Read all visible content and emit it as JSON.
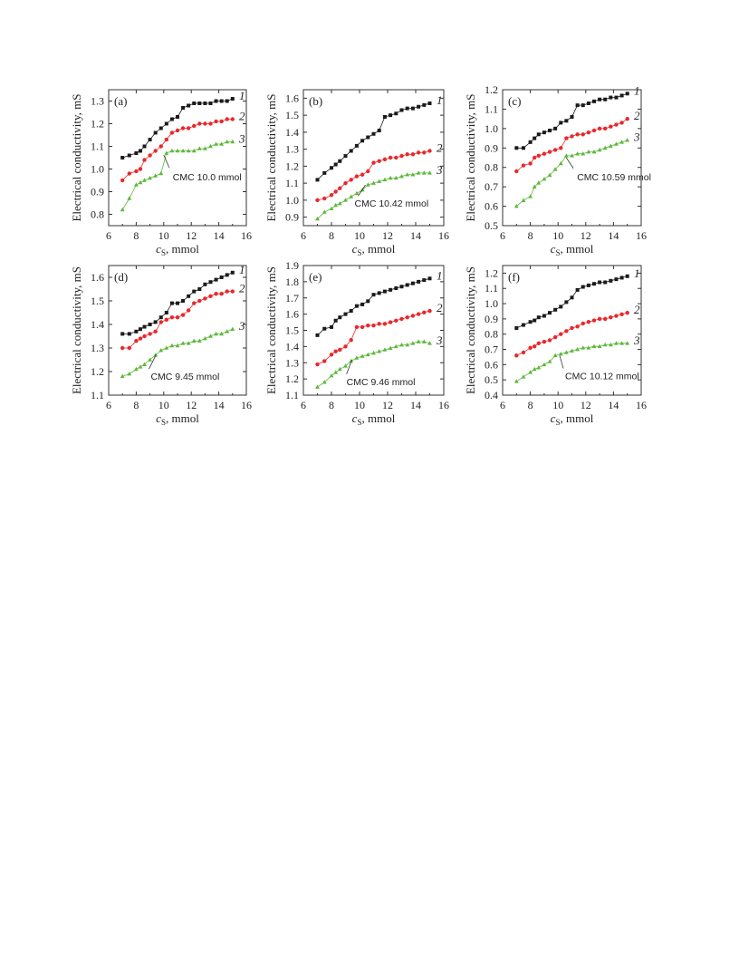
{
  "colors": {
    "series1": "#1a1a1a",
    "series2": "#e8282b",
    "series3": "#5cb83a"
  },
  "chart_data": [
    {
      "type": "line",
      "panel_label": "(a)",
      "xlabel_main": "c",
      "xlabel_sub": "S",
      "xlabel_rest": ", mmol",
      "ylabel": "Electrical conductivity, mS",
      "xlim": [
        6,
        16
      ],
      "ylim": [
        0.75,
        1.35
      ],
      "xticks": [
        6,
        8,
        10,
        12,
        14,
        16
      ],
      "yticks": [
        0.8,
        0.9,
        1.0,
        1.1,
        1.2,
        1.3
      ],
      "yprecision": 1,
      "annotation": "CMC 10.0 mmol",
      "cmc_point": [
        10.0,
        1.07
      ],
      "series": [
        {
          "name": "1",
          "marker": "square",
          "x": [
            7.0,
            7.5,
            8.0,
            8.3,
            8.6,
            9.0,
            9.4,
            9.8,
            10.2,
            10.6,
            11.0,
            11.4,
            11.8,
            12.2,
            12.6,
            13.0,
            13.4,
            13.8,
            14.2,
            14.6,
            15.0
          ],
          "y": [
            1.05,
            1.06,
            1.07,
            1.08,
            1.1,
            1.13,
            1.16,
            1.18,
            1.2,
            1.22,
            1.23,
            1.27,
            1.28,
            1.29,
            1.29,
            1.29,
            1.29,
            1.3,
            1.3,
            1.3,
            1.31
          ]
        },
        {
          "name": "2",
          "marker": "circle",
          "x": [
            7.0,
            7.5,
            8.0,
            8.3,
            8.6,
            9.0,
            9.4,
            9.8,
            10.2,
            10.6,
            11.0,
            11.4,
            11.8,
            12.2,
            12.6,
            13.0,
            13.4,
            13.8,
            14.2,
            14.6,
            15.0
          ],
          "y": [
            0.95,
            0.98,
            0.99,
            1.0,
            1.04,
            1.06,
            1.08,
            1.1,
            1.13,
            1.16,
            1.17,
            1.18,
            1.18,
            1.19,
            1.2,
            1.2,
            1.2,
            1.21,
            1.21,
            1.22,
            1.22
          ]
        },
        {
          "name": "3",
          "marker": "triangle",
          "x": [
            7.0,
            7.5,
            8.0,
            8.3,
            8.6,
            9.0,
            9.4,
            9.8,
            10.2,
            10.6,
            11.0,
            11.4,
            11.8,
            12.2,
            12.6,
            13.0,
            13.4,
            13.8,
            14.2,
            14.6,
            15.0
          ],
          "y": [
            0.82,
            0.87,
            0.93,
            0.94,
            0.95,
            0.96,
            0.97,
            0.98,
            1.07,
            1.08,
            1.08,
            1.08,
            1.08,
            1.08,
            1.09,
            1.09,
            1.1,
            1.11,
            1.11,
            1.12,
            1.12
          ]
        }
      ]
    },
    {
      "type": "line",
      "panel_label": "(b)",
      "xlabel_main": "c",
      "xlabel_sub": "S",
      "xlabel_rest": ", mmol",
      "ylabel": "Electrical conductivity, mS",
      "xlim": [
        6,
        16
      ],
      "ylim": [
        0.85,
        1.65
      ],
      "xticks": [
        6,
        8,
        10,
        12,
        14,
        16
      ],
      "yticks": [
        0.9,
        1.0,
        1.1,
        1.2,
        1.3,
        1.4,
        1.5,
        1.6
      ],
      "yprecision": 1,
      "annotation": "CMC 10.42 mmol",
      "cmc_point": [
        10.42,
        1.1
      ],
      "series": [
        {
          "name": "1",
          "marker": "square",
          "x": [
            7.0,
            7.5,
            8.0,
            8.3,
            8.6,
            9.0,
            9.4,
            9.8,
            10.2,
            10.6,
            11.0,
            11.4,
            11.8,
            12.2,
            12.6,
            13.0,
            13.4,
            13.8,
            14.2,
            14.6,
            15.0
          ],
          "y": [
            1.12,
            1.16,
            1.19,
            1.21,
            1.23,
            1.26,
            1.29,
            1.32,
            1.35,
            1.37,
            1.39,
            1.41,
            1.49,
            1.5,
            1.51,
            1.53,
            1.54,
            1.54,
            1.55,
            1.56,
            1.57
          ]
        },
        {
          "name": "2",
          "marker": "circle",
          "x": [
            7.0,
            7.5,
            8.0,
            8.3,
            8.6,
            9.0,
            9.4,
            9.8,
            10.2,
            10.6,
            11.0,
            11.4,
            11.8,
            12.2,
            12.6,
            13.0,
            13.4,
            13.8,
            14.2,
            14.6,
            15.0
          ],
          "y": [
            1.0,
            1.01,
            1.03,
            1.05,
            1.07,
            1.1,
            1.12,
            1.14,
            1.15,
            1.17,
            1.22,
            1.23,
            1.24,
            1.25,
            1.25,
            1.26,
            1.27,
            1.27,
            1.28,
            1.28,
            1.29
          ]
        },
        {
          "name": "3",
          "marker": "triangle",
          "x": [
            7.0,
            7.5,
            8.0,
            8.3,
            8.6,
            9.0,
            9.4,
            9.8,
            10.2,
            10.6,
            11.0,
            11.4,
            11.8,
            12.2,
            12.6,
            13.0,
            13.4,
            13.8,
            14.2,
            14.6,
            15.0
          ],
          "y": [
            0.89,
            0.93,
            0.95,
            0.97,
            0.98,
            1.0,
            1.02,
            1.04,
            1.06,
            1.09,
            1.1,
            1.11,
            1.12,
            1.13,
            1.13,
            1.14,
            1.15,
            1.15,
            1.16,
            1.16,
            1.16
          ]
        }
      ]
    },
    {
      "type": "line",
      "panel_label": "(c)",
      "xlabel_main": "c",
      "xlabel_sub": "S",
      "xlabel_rest": ", mmol",
      "ylabel": "Electrical conductivity, mS",
      "xlim": [
        6,
        16
      ],
      "ylim": [
        0.5,
        1.2
      ],
      "xticks": [
        6,
        8,
        10,
        12,
        14,
        16
      ],
      "yticks": [
        0.5,
        0.6,
        0.7,
        0.8,
        0.9,
        1.0,
        1.1,
        1.2
      ],
      "yprecision": 1,
      "annotation": "CMC 10.59 mmol",
      "cmc_point": [
        10.59,
        0.86
      ],
      "series": [
        {
          "name": "1",
          "marker": "square",
          "x": [
            7.0,
            7.5,
            8.0,
            8.3,
            8.6,
            9.0,
            9.4,
            9.8,
            10.2,
            10.6,
            11.0,
            11.4,
            11.8,
            12.2,
            12.6,
            13.0,
            13.4,
            13.8,
            14.2,
            14.6,
            15.0
          ],
          "y": [
            0.9,
            0.9,
            0.93,
            0.95,
            0.97,
            0.98,
            0.99,
            1.0,
            1.03,
            1.04,
            1.06,
            1.12,
            1.12,
            1.13,
            1.14,
            1.15,
            1.15,
            1.16,
            1.16,
            1.17,
            1.18
          ]
        },
        {
          "name": "2",
          "marker": "circle",
          "x": [
            7.0,
            7.5,
            8.0,
            8.3,
            8.6,
            9.0,
            9.4,
            9.8,
            10.2,
            10.6,
            11.0,
            11.4,
            11.8,
            12.2,
            12.6,
            13.0,
            13.4,
            13.8,
            14.2,
            14.6,
            15.0
          ],
          "y": [
            0.78,
            0.81,
            0.82,
            0.85,
            0.86,
            0.87,
            0.88,
            0.89,
            0.9,
            0.95,
            0.96,
            0.97,
            0.97,
            0.98,
            0.99,
            1.0,
            1.0,
            1.01,
            1.02,
            1.03,
            1.05
          ]
        },
        {
          "name": "3",
          "marker": "triangle",
          "x": [
            7.0,
            7.5,
            8.0,
            8.3,
            8.6,
            9.0,
            9.4,
            9.8,
            10.2,
            10.6,
            11.0,
            11.4,
            11.8,
            12.2,
            12.6,
            13.0,
            13.4,
            13.8,
            14.2,
            14.6,
            15.0
          ],
          "y": [
            0.6,
            0.63,
            0.65,
            0.7,
            0.72,
            0.74,
            0.76,
            0.79,
            0.82,
            0.86,
            0.86,
            0.87,
            0.87,
            0.88,
            0.88,
            0.89,
            0.9,
            0.91,
            0.92,
            0.93,
            0.94
          ]
        }
      ]
    },
    {
      "type": "line",
      "panel_label": "(d)",
      "xlabel_main": "c",
      "xlabel_sub": "S",
      "xlabel_rest": ", mmol",
      "ylabel": "Electrical conductivity, mS",
      "xlim": [
        6,
        16
      ],
      "ylim": [
        1.1,
        1.65
      ],
      "xticks": [
        6,
        8,
        10,
        12,
        14,
        16
      ],
      "yticks": [
        1.1,
        1.2,
        1.3,
        1.4,
        1.5,
        1.6
      ],
      "yprecision": 1,
      "annotation": "CMC 9.45 mmol",
      "cmc_point": [
        9.45,
        1.28
      ],
      "series": [
        {
          "name": "1",
          "marker": "square",
          "x": [
            7.0,
            7.5,
            8.0,
            8.3,
            8.6,
            9.0,
            9.4,
            9.8,
            10.2,
            10.6,
            11.0,
            11.4,
            11.8,
            12.2,
            12.6,
            13.0,
            13.4,
            13.8,
            14.2,
            14.6,
            15.0
          ],
          "y": [
            1.36,
            1.36,
            1.37,
            1.38,
            1.39,
            1.4,
            1.41,
            1.43,
            1.45,
            1.49,
            1.49,
            1.5,
            1.52,
            1.54,
            1.55,
            1.57,
            1.58,
            1.59,
            1.6,
            1.61,
            1.62
          ]
        },
        {
          "name": "2",
          "marker": "circle",
          "x": [
            7.0,
            7.5,
            8.0,
            8.3,
            8.6,
            9.0,
            9.4,
            9.8,
            10.2,
            10.6,
            11.0,
            11.4,
            11.8,
            12.2,
            12.6,
            13.0,
            13.4,
            13.8,
            14.2,
            14.6,
            15.0
          ],
          "y": [
            1.3,
            1.3,
            1.33,
            1.34,
            1.35,
            1.36,
            1.37,
            1.41,
            1.42,
            1.43,
            1.43,
            1.44,
            1.46,
            1.49,
            1.5,
            1.51,
            1.52,
            1.53,
            1.53,
            1.54,
            1.54
          ]
        },
        {
          "name": "3",
          "marker": "triangle",
          "x": [
            7.0,
            7.5,
            8.0,
            8.3,
            8.6,
            9.0,
            9.4,
            9.8,
            10.2,
            10.6,
            11.0,
            11.4,
            11.8,
            12.2,
            12.6,
            13.0,
            13.4,
            13.8,
            14.2,
            14.6,
            15.0
          ],
          "y": [
            1.18,
            1.19,
            1.21,
            1.22,
            1.23,
            1.25,
            1.27,
            1.29,
            1.3,
            1.31,
            1.31,
            1.32,
            1.32,
            1.33,
            1.33,
            1.34,
            1.35,
            1.36,
            1.36,
            1.37,
            1.38
          ]
        }
      ]
    },
    {
      "type": "line",
      "panel_label": "(e)",
      "xlabel_main": "c",
      "xlabel_sub": "S",
      "xlabel_rest": ", mmol",
      "ylabel": "Electrical conductivity, mS",
      "xlim": [
        6,
        16
      ],
      "ylim": [
        1.1,
        1.9
      ],
      "xticks": [
        6,
        8,
        10,
        12,
        14,
        16
      ],
      "yticks": [
        1.1,
        1.2,
        1.3,
        1.4,
        1.5,
        1.6,
        1.7,
        1.8,
        1.9
      ],
      "yprecision": 1,
      "annotation": "CMC 9.46 mmol",
      "cmc_point": [
        9.46,
        1.33
      ],
      "series": [
        {
          "name": "1",
          "marker": "square",
          "x": [
            7.0,
            7.5,
            8.0,
            8.3,
            8.6,
            9.0,
            9.4,
            9.8,
            10.2,
            10.6,
            11.0,
            11.4,
            11.8,
            12.2,
            12.6,
            13.0,
            13.4,
            13.8,
            14.2,
            14.6,
            15.0
          ],
          "y": [
            1.47,
            1.51,
            1.52,
            1.56,
            1.58,
            1.6,
            1.62,
            1.65,
            1.66,
            1.68,
            1.72,
            1.73,
            1.74,
            1.75,
            1.76,
            1.77,
            1.78,
            1.79,
            1.8,
            1.81,
            1.82
          ]
        },
        {
          "name": "2",
          "marker": "circle",
          "x": [
            7.0,
            7.5,
            8.0,
            8.3,
            8.6,
            9.0,
            9.4,
            9.8,
            10.2,
            10.6,
            11.0,
            11.4,
            11.8,
            12.2,
            12.6,
            13.0,
            13.4,
            13.8,
            14.2,
            14.6,
            15.0
          ],
          "y": [
            1.29,
            1.31,
            1.35,
            1.37,
            1.38,
            1.4,
            1.44,
            1.52,
            1.52,
            1.53,
            1.53,
            1.54,
            1.54,
            1.55,
            1.56,
            1.57,
            1.58,
            1.59,
            1.6,
            1.61,
            1.62
          ]
        },
        {
          "name": "3",
          "marker": "triangle",
          "x": [
            7.0,
            7.5,
            8.0,
            8.3,
            8.6,
            9.0,
            9.4,
            9.8,
            10.2,
            10.6,
            11.0,
            11.4,
            11.8,
            12.2,
            12.6,
            13.0,
            13.4,
            13.8,
            14.2,
            14.6,
            15.0
          ],
          "y": [
            1.15,
            1.18,
            1.22,
            1.24,
            1.26,
            1.28,
            1.31,
            1.33,
            1.34,
            1.35,
            1.36,
            1.37,
            1.38,
            1.39,
            1.4,
            1.41,
            1.41,
            1.42,
            1.43,
            1.43,
            1.42
          ]
        }
      ]
    },
    {
      "type": "line",
      "panel_label": "(f)",
      "xlabel_main": "c",
      "xlabel_sub": "S",
      "xlabel_rest": ", mmol",
      "ylabel": "Electrical conductivity, mS",
      "xlim": [
        6,
        16
      ],
      "ylim": [
        0.4,
        1.25
      ],
      "xticks": [
        6,
        8,
        10,
        12,
        14,
        16
      ],
      "yticks": [
        0.4,
        0.5,
        0.6,
        0.7,
        0.8,
        0.9,
        1.0,
        1.1,
        1.2
      ],
      "yprecision": 1,
      "annotation": "CMC 10.12 mmol",
      "cmc_point": [
        10.12,
        0.67
      ],
      "series": [
        {
          "name": "1",
          "marker": "square",
          "x": [
            7.0,
            7.5,
            8.0,
            8.3,
            8.6,
            9.0,
            9.4,
            9.8,
            10.2,
            10.6,
            11.0,
            11.4,
            11.8,
            12.2,
            12.6,
            13.0,
            13.4,
            13.8,
            14.2,
            14.6,
            15.0
          ],
          "y": [
            0.84,
            0.86,
            0.88,
            0.89,
            0.91,
            0.92,
            0.94,
            0.96,
            0.98,
            1.01,
            1.04,
            1.09,
            1.11,
            1.12,
            1.13,
            1.14,
            1.14,
            1.15,
            1.16,
            1.17,
            1.18
          ]
        },
        {
          "name": "2",
          "marker": "circle",
          "x": [
            7.0,
            7.5,
            8.0,
            8.3,
            8.6,
            9.0,
            9.4,
            9.8,
            10.2,
            10.6,
            11.0,
            11.4,
            11.8,
            12.2,
            12.6,
            13.0,
            13.4,
            13.8,
            14.2,
            14.6,
            15.0
          ],
          "y": [
            0.66,
            0.68,
            0.71,
            0.72,
            0.74,
            0.75,
            0.76,
            0.78,
            0.8,
            0.82,
            0.84,
            0.85,
            0.87,
            0.88,
            0.89,
            0.9,
            0.9,
            0.91,
            0.92,
            0.93,
            0.94
          ]
        },
        {
          "name": "3",
          "marker": "triangle",
          "x": [
            7.0,
            7.5,
            8.0,
            8.3,
            8.6,
            9.0,
            9.4,
            9.8,
            10.2,
            10.6,
            11.0,
            11.4,
            11.8,
            12.2,
            12.6,
            13.0,
            13.4,
            13.8,
            14.2,
            14.6,
            15.0
          ],
          "y": [
            0.49,
            0.52,
            0.55,
            0.57,
            0.58,
            0.6,
            0.62,
            0.66,
            0.67,
            0.68,
            0.69,
            0.7,
            0.71,
            0.71,
            0.72,
            0.72,
            0.73,
            0.73,
            0.74,
            0.74,
            0.74
          ]
        }
      ]
    }
  ]
}
